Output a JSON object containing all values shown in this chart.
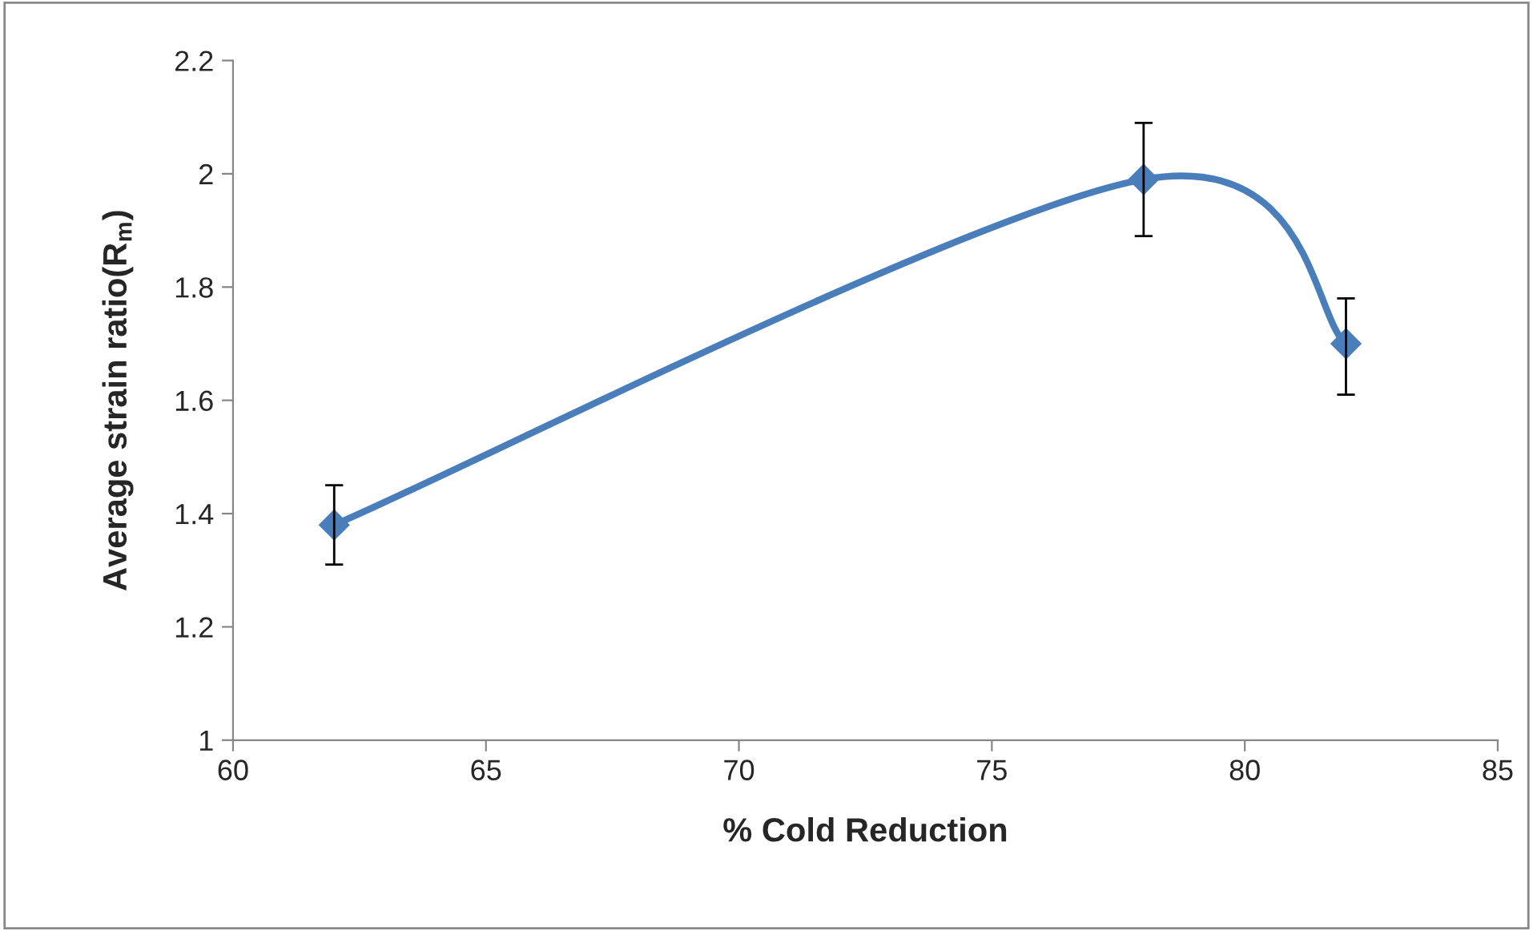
{
  "chart_data": {
    "type": "line",
    "xlabel": "% Cold Reduction",
    "ylabel": "Average strain ratio(R$_{m}$)",
    "x": [
      62,
      78,
      82
    ],
    "series": [
      {
        "color": "#4a7ebb",
        "values": [
          1.38,
          1.99,
          1.7
        ],
        "errors": [
          0.07,
          0.1,
          [
            1.61,
            1.78
          ]
        ]
      }
    ],
    "xlim": [
      60,
      85
    ],
    "xticks": [
      60,
      65,
      70,
      75,
      80,
      85
    ],
    "ylim": [
      1,
      2.2
    ],
    "yticks": [
      1,
      1.2,
      1.4,
      1.6,
      1.8,
      2,
      2.2
    ],
    "marker": "diamond",
    "line_style": "solid",
    "grid": false,
    "legend": false
  }
}
